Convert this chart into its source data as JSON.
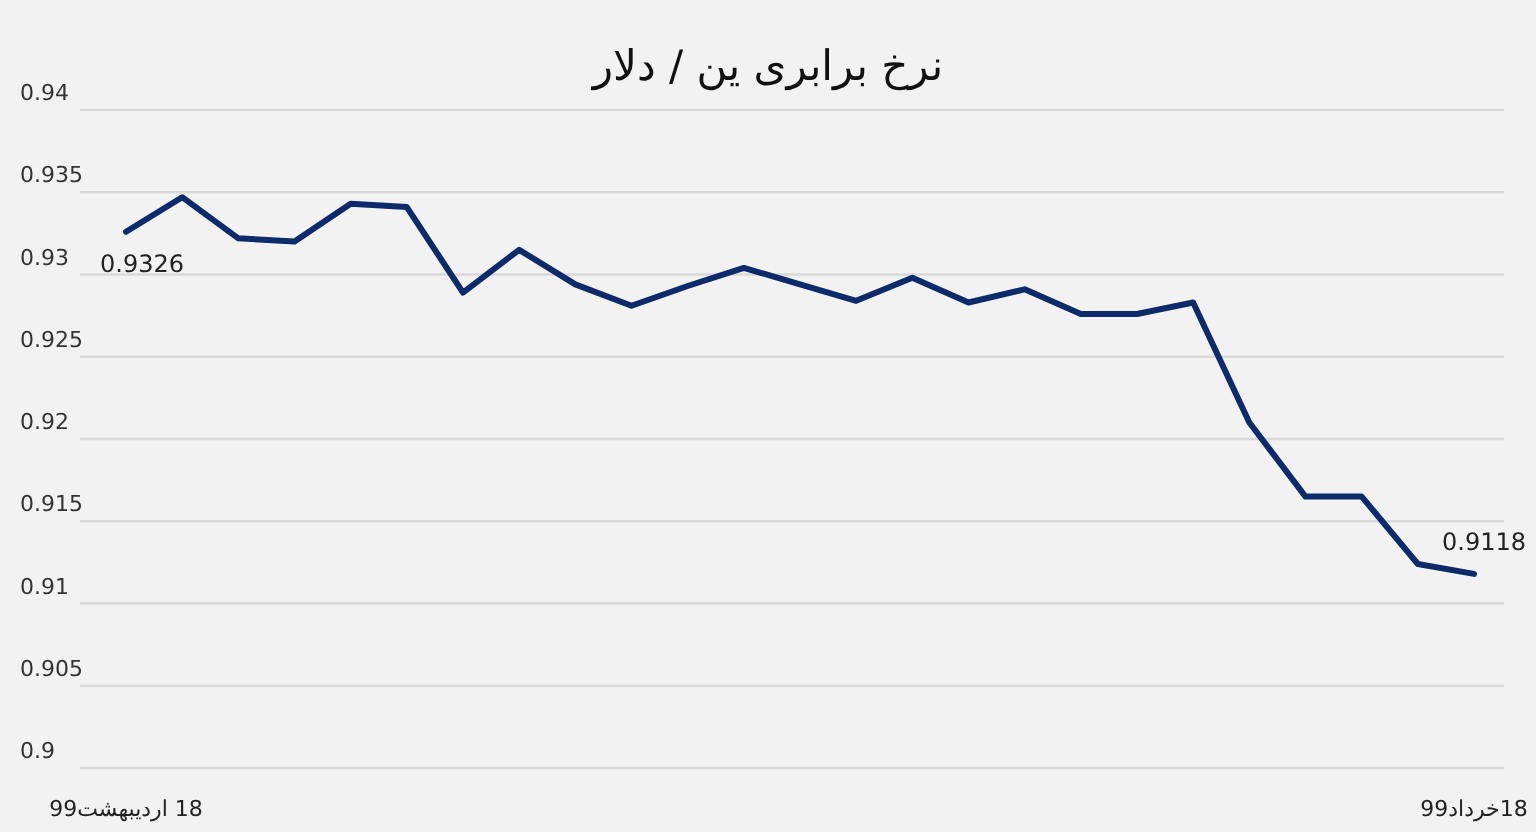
{
  "chart_data": {
    "type": "line",
    "title": "نرخ برابری ین / دلار",
    "categories": [
      "18 اردیبهشت99",
      null,
      null,
      null,
      null,
      null,
      null,
      null,
      null,
      null,
      null,
      null,
      null,
      null,
      null,
      null,
      null,
      null,
      null,
      null,
      null,
      null,
      null,
      null,
      "18خرداد99"
    ],
    "series": [
      {
        "color": "#0d2a6b",
        "values": [
          0.9326,
          0.9347,
          0.9322,
          0.932,
          0.9343,
          0.9341,
          0.9289,
          0.9315,
          0.9294,
          0.9281,
          0.9293,
          0.9304,
          0.9294,
          0.9284,
          0.9298,
          0.9283,
          0.9291,
          0.9276,
          0.9276,
          0.9283,
          0.921,
          0.9165,
          0.9165,
          0.9124,
          0.9118
        ],
        "value_labels": [
          "0.9326",
          null,
          null,
          null,
          null,
          null,
          null,
          null,
          null,
          null,
          null,
          null,
          null,
          null,
          null,
          null,
          null,
          null,
          null,
          null,
          null,
          null,
          null,
          null,
          "0.9118"
        ]
      }
    ],
    "ylim": [
      0.9,
      0.94
    ],
    "yticks": [
      0.9,
      0.905,
      0.91,
      0.915,
      0.92,
      0.925,
      0.93,
      0.935,
      0.94
    ],
    "grid": "y",
    "legend": false,
    "marker": "none",
    "line_style": "solid"
  }
}
